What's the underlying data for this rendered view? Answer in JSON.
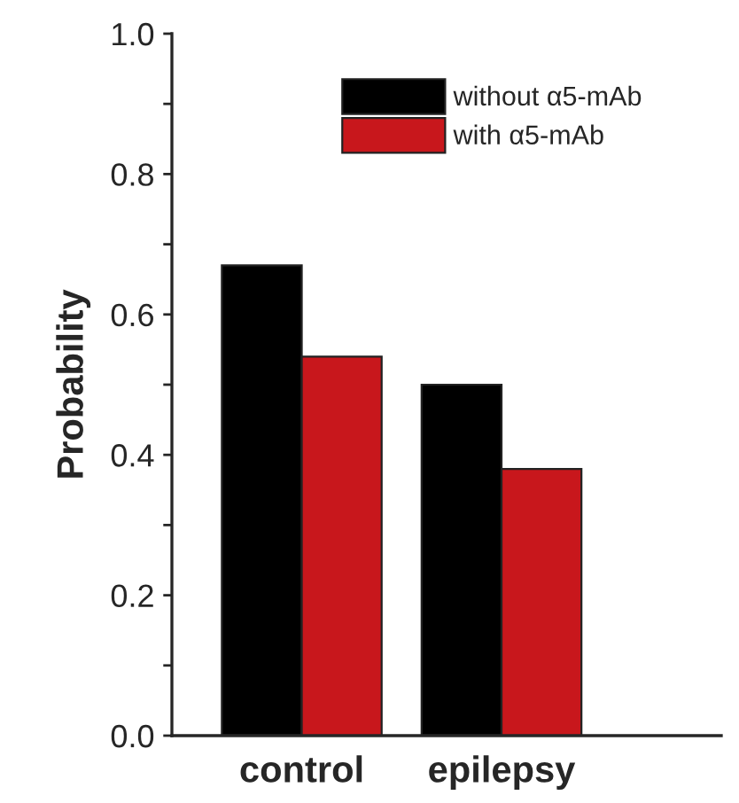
{
  "chart_data": {
    "type": "bar",
    "ylabel": "Probability",
    "categories": [
      "control",
      "epilepsy"
    ],
    "series": [
      {
        "name": "without α5-mAb",
        "color": "#000000",
        "values": [
          0.67,
          0.5
        ]
      },
      {
        "name": "with α5-mAb",
        "color": "#c8171c",
        "values": [
          0.54,
          0.38
        ]
      }
    ],
    "ylim": [
      0,
      1.0
    ],
    "yticks": [
      {
        "value": 0,
        "label": "0.0"
      },
      {
        "value": 0.1,
        "label": null
      },
      0.2,
      {
        "value": 0.3,
        "label": null
      },
      0.4,
      {
        "value": 0.5,
        "label": null
      },
      0.6,
      {
        "value": 0.7,
        "label": null
      },
      0.8,
      {
        "value": 0.9,
        "label": null
      },
      {
        "value": 1,
        "label": "1.0"
      }
    ],
    "grid": false,
    "legend": "top right"
  }
}
